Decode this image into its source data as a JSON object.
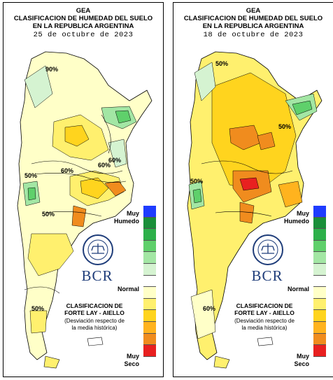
{
  "maps": [
    {
      "id": "left",
      "title_org": "GEA",
      "title_main": "CLASIFICACION DE HUMEDAD DEL SUELO",
      "title_region": "EN LA REPUBLICA ARGENTINA",
      "date": "25 de octubre de 2023",
      "contour_labels": [
        "90%",
        "60%",
        "60%",
        "50%",
        "50%",
        "50%",
        "60%"
      ]
    },
    {
      "id": "right",
      "title_org": "GEA",
      "title_main": "CLASIFICACION DE HUMEDAD DEL SUELO",
      "title_region": "EN LA REPUBLICA ARGENTINA",
      "date": "18 de octubre de 2023",
      "contour_labels": [
        "50%",
        "50%",
        "50%",
        "60%"
      ]
    }
  ],
  "legend": {
    "top_label": "Muy\nHumedo",
    "normal_label": "Normal",
    "bottom_label": "Muy\nSeco",
    "classification": "CLASIFICACION DE\nFORTE LAY - AIELLO",
    "description": "(Desviación respecto de\nla media histórica)",
    "logo_text": "BCR",
    "colors": [
      "#1e3cff",
      "#1a8f3a",
      "#2db04a",
      "#5fd06b",
      "#a3e6a4",
      "#d5f3d1",
      "#ffffff",
      "#ffffc8",
      "#fff06e",
      "#ffd41e",
      "#ffb31e",
      "#f08c1e",
      "#e82020"
    ]
  }
}
